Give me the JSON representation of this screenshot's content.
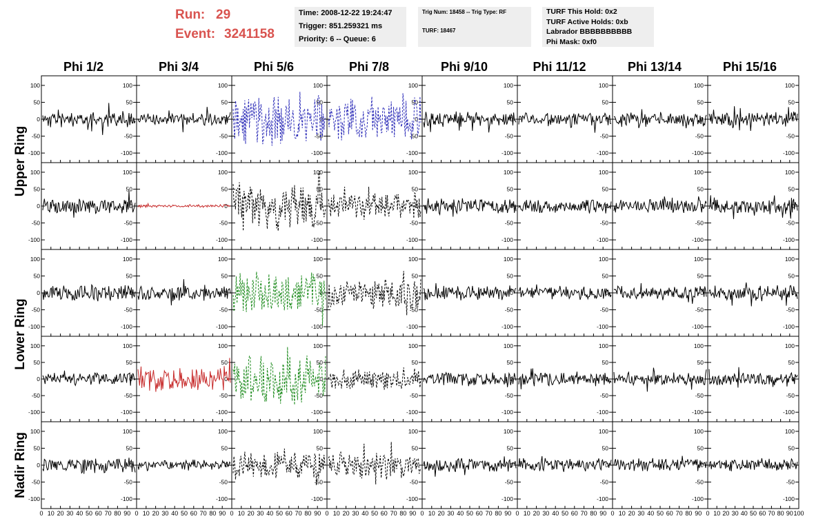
{
  "header": {
    "run_label": "Run:",
    "run_value": "29",
    "event_label": "Event:",
    "event_value": "3241158"
  },
  "info_time": {
    "time": "Time: 2008-12-22 19:24:47",
    "trigger": "Trigger: 851.259321 ms",
    "priority": "Priority: 6 -- Queue: 6"
  },
  "info_trig": {
    "trig": "Trig Num: 18458 -- Trig Type: RF",
    "turf": "TURF: 18467"
  },
  "info_turf": {
    "hold": "TURF This Hold: 0x2",
    "active": "TURF Active Holds: 0xb",
    "labrador": "Labrador BBBBBBBBBB",
    "phimask": "Phi Mask: 0xf0"
  },
  "phi_labels": [
    "Phi 1/2",
    "Phi 3/4",
    "Phi 5/6",
    "Phi 7/8",
    "Phi 9/10",
    "Phi 11/12",
    "Phi 13/14",
    "Phi 15/16"
  ],
  "ring_labels": {
    "upper": "Upper Ring",
    "lower": "Lower Ring",
    "nadir": "Nadir Ring"
  },
  "chart_data": {
    "type": "line",
    "xlim": [
      0,
      100
    ],
    "ylim": [
      -110,
      110
    ],
    "x_ticks": [
      "0",
      "10",
      "20",
      "30",
      "40",
      "50",
      "60",
      "70",
      "80",
      "90",
      "100"
    ],
    "y_ticks": [
      "100",
      "50",
      "0",
      "-50",
      "-100"
    ],
    "colors": {
      "black": "#000000",
      "blue": "#2b2bb8",
      "red": "#c62828",
      "green": "#1b8a1b"
    },
    "rows": [
      {
        "ring": "upper",
        "panels": [
          {
            "amp": 18,
            "color": "black",
            "dashed": false,
            "seed": 11
          },
          {
            "amp": 15,
            "color": "black",
            "dashed": false,
            "seed": 12
          },
          {
            "amp": 60,
            "color": "blue",
            "dashed": true,
            "seed": 13
          },
          {
            "amp": 50,
            "color": "blue",
            "dashed": true,
            "seed": 14
          },
          {
            "amp": 17,
            "color": "black",
            "dashed": false,
            "seed": 15
          },
          {
            "amp": 15,
            "color": "black",
            "dashed": false,
            "seed": 16
          },
          {
            "amp": 16,
            "color": "black",
            "dashed": false,
            "seed": 17
          },
          {
            "amp": 19,
            "color": "black",
            "dashed": false,
            "seed": 18
          }
        ]
      },
      {
        "ring": "upper",
        "panels": [
          {
            "amp": 18,
            "color": "black",
            "dashed": false,
            "seed": 21
          },
          {
            "amp": 3,
            "color": "red",
            "dashed": false,
            "seed": 22
          },
          {
            "amp": 55,
            "color": "black",
            "dashed": true,
            "seed": 23
          },
          {
            "amp": 30,
            "color": "black",
            "dashed": true,
            "seed": 24
          },
          {
            "amp": 18,
            "color": "black",
            "dashed": false,
            "seed": 25
          },
          {
            "amp": 16,
            "color": "black",
            "dashed": false,
            "seed": 26
          },
          {
            "amp": 16,
            "color": "black",
            "dashed": false,
            "seed": 27
          },
          {
            "amp": 18,
            "color": "black",
            "dashed": false,
            "seed": 28
          }
        ]
      },
      {
        "ring": "lower",
        "panels": [
          {
            "amp": 18,
            "color": "black",
            "dashed": false,
            "seed": 31
          },
          {
            "amp": 17,
            "color": "black",
            "dashed": false,
            "seed": 32
          },
          {
            "amp": 45,
            "color": "green",
            "dashed": true,
            "seed": 33
          },
          {
            "amp": 35,
            "color": "black",
            "dashed": true,
            "seed": 34
          },
          {
            "amp": 16,
            "color": "black",
            "dashed": false,
            "seed": 35
          },
          {
            "amp": 15,
            "color": "black",
            "dashed": false,
            "seed": 36
          },
          {
            "amp": 16,
            "color": "black",
            "dashed": false,
            "seed": 37
          },
          {
            "amp": 17,
            "color": "black",
            "dashed": false,
            "seed": 38
          }
        ]
      },
      {
        "ring": "lower",
        "panels": [
          {
            "amp": 16,
            "color": "black",
            "dashed": false,
            "seed": 41
          },
          {
            "amp": 28,
            "color": "red",
            "dashed": false,
            "seed": 42
          },
          {
            "amp": 55,
            "color": "green",
            "dashed": true,
            "seed": 43
          },
          {
            "amp": 25,
            "color": "black",
            "dashed": true,
            "seed": 44
          },
          {
            "amp": 16,
            "color": "black",
            "dashed": false,
            "seed": 45
          },
          {
            "amp": 16,
            "color": "black",
            "dashed": false,
            "seed": 46
          },
          {
            "amp": 15,
            "color": "black",
            "dashed": false,
            "seed": 47
          },
          {
            "amp": 18,
            "color": "black",
            "dashed": false,
            "seed": 48
          }
        ]
      },
      {
        "ring": "nadir",
        "panels": [
          {
            "amp": 17,
            "color": "black",
            "dashed": false,
            "seed": 51
          },
          {
            "amp": 12,
            "color": "black",
            "dashed": false,
            "seed": 52
          },
          {
            "amp": 30,
            "color": "black",
            "dashed": true,
            "seed": 53
          },
          {
            "amp": 30,
            "color": "black",
            "dashed": true,
            "seed": 54
          },
          {
            "amp": 15,
            "color": "black",
            "dashed": false,
            "seed": 55
          },
          {
            "amp": 15,
            "color": "black",
            "dashed": false,
            "seed": 56
          },
          {
            "amp": 15,
            "color": "black",
            "dashed": false,
            "seed": 57
          },
          {
            "amp": 14,
            "color": "black",
            "dashed": false,
            "seed": 58
          }
        ]
      }
    ]
  }
}
